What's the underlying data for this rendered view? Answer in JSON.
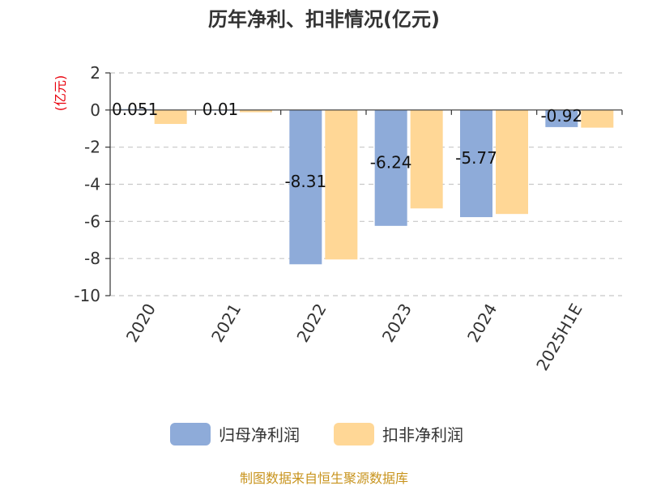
{
  "chart_data": {
    "type": "bar",
    "title": "历年净利、扣非情况(亿元)",
    "unit_label": "(亿元)",
    "categories": [
      "2020",
      "2021",
      "2022",
      "2023",
      "2024",
      "2025H1E"
    ],
    "series": [
      {
        "name": "归母净利润",
        "color": "#8eabd9",
        "values": [
          0.051,
          0.01,
          -8.31,
          -6.24,
          -5.77,
          -0.92
        ],
        "labels": [
          "0.051",
          "0.01",
          "-8.31",
          "-6.24",
          "-5.77",
          "-0.92"
        ]
      },
      {
        "name": "扣非净利润",
        "color": "#ffd796",
        "values": [
          -0.75,
          -0.12,
          -8.05,
          -5.3,
          -5.6,
          -0.95
        ]
      }
    ],
    "ylim": [
      -10,
      2
    ],
    "yticks": [
      "2",
      "0",
      "-2",
      "-4",
      "-6",
      "-8",
      "-10"
    ],
    "grid": true,
    "legend_position": "bottom"
  },
  "footer": {
    "source": "制图数据来自恒生聚源数据库"
  }
}
